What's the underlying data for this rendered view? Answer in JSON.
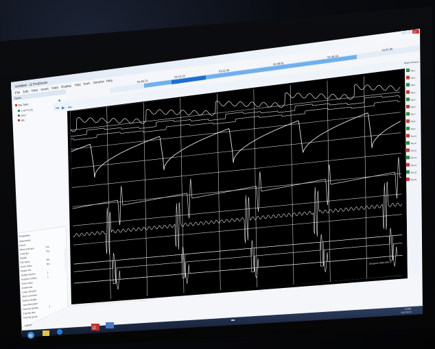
{
  "app": {
    "title": "Untitled - i2 ProDriver",
    "menu": [
      "File",
      "Edit",
      "View",
      "Insert",
      "Data",
      "Display",
      "Map",
      "Tools",
      "Window",
      "Help"
    ],
    "timeline_labels": [
      "01:48.73",
      "02:13.22",
      "01:52.29",
      "01:49.92",
      "01:48.24",
      "01:47.60"
    ]
  },
  "left_panel": {
    "header": "Tasks",
    "tree": [
      "My Task",
      "1:48.73 (3)",
      "RA3",
      "RB"
    ],
    "properties_title": "Properties",
    "properties": [
      {
        "label": "Appearance",
        "value": ""
      },
      {
        "label": "Colors",
        "value": ""
      },
      {
        "label": "Show selection",
        "value": "Yes"
      },
      {
        "label": "Load tips",
        "value": "Yes"
      },
      {
        "label": "Details",
        "value": ""
      },
      {
        "label": "Car name",
        "value": "RA"
      },
      {
        "label": "Event name",
        "value": "RA"
      },
      {
        "label": "Engine No.",
        "value": ""
      },
      {
        "label": "Outing number",
        "value": "1"
      },
      {
        "label": "Session number",
        "value": "1"
      },
      {
        "label": "Track name",
        "value": ""
      },
      {
        "label": "Comments",
        "value": ""
      },
      {
        "label": "Long comment",
        "value": ""
      },
      {
        "label": "Short comment",
        "value": ""
      },
      {
        "label": "System details",
        "value": ""
      },
      {
        "label": "Lap information",
        "value": ""
      },
      {
        "label": "Fast lap number",
        "value": "1"
      },
      {
        "label": "Fast lap time",
        "value": ""
      },
      {
        "label": "Fast lap group",
        "value": ""
      }
    ],
    "bottom_tab": "Layout"
  },
  "chart": {
    "x_axis_label": "1 Time (user defined) Sig No Value Sig No Value Baro No Value Rate No Value",
    "x_ticks": [
      "0",
      "1000",
      "2000",
      "3000",
      "4000",
      "5000"
    ],
    "distance_readout": "Distance 2060.000 m",
    "left_axis_caption": "1 Time (user defined)"
  },
  "right_panel": {
    "header": "Brake Pressure",
    "items": [
      "Sig 1",
      "Sig 2",
      "Sig 3",
      "Sig 4",
      "Sig 5",
      "Sig 6",
      "Sig 7",
      "Sig 8",
      "Sig 9",
      "Sig 10",
      "Sig 11",
      "Sig 12",
      "Sig 13",
      "Sig 14",
      "Sig 15",
      "Sig 16"
    ]
  },
  "taskbar": {
    "time": "13:08",
    "date": "21/02/2013",
    "apps": [
      "start",
      "explorer",
      "ie",
      "i2",
      "pro"
    ]
  },
  "colors": {
    "chart_bg": "#000000",
    "trace": "#e8e8e8",
    "grid": "#f2f2f2",
    "window_bg": "#eef2f7",
    "accent": "#2b7bd6",
    "tag_green": "#2e8b3a",
    "tag_red": "#c23a30"
  }
}
